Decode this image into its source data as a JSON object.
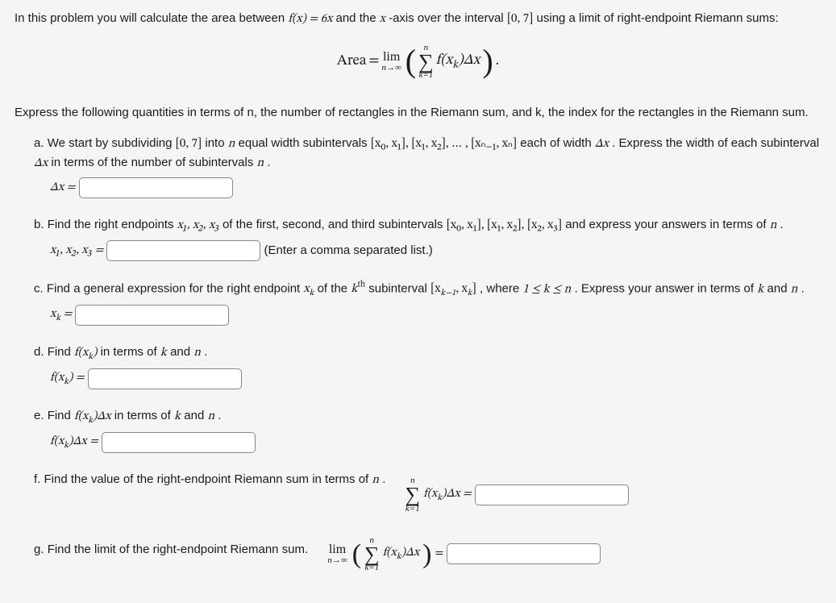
{
  "intro_pre": "In this problem you will calculate the area between ",
  "intro_fx": "f(x) = 6x",
  "intro_mid": " and the ",
  "intro_xaxis": "x",
  "intro_post_axis": "-axis over the interval ",
  "intro_interval": "[0, 7]",
  "intro_end": " using a limit of right-endpoint Riemann sums:",
  "area_formula": {
    "lhs": "Area",
    "eq": " = ",
    "lim": "lim",
    "lim_sub": "n→∞",
    "sum_top": "n",
    "sum_bot": "k=1",
    "summand": "f(x",
    "summand_sub": "k",
    "summand_tail": ")Δx",
    "period": "."
  },
  "sub_intro": "Express the following quantities in terms of n, the number of rectangles in the Riemann sum, and k, the index for the rectangles in the Riemann sum.",
  "parts": {
    "a": {
      "label": "a.",
      "text_1": " We start by subdividing ",
      "interval": "[0, 7]",
      "text_2": " into ",
      "n": "n",
      "text_3": " equal width subintervals ",
      "subs": "[x₀, x₁], [x₁, x₂], … , [xₙ₋₁, xₙ]",
      "text_4": " each of width ",
      "dx": "Δx",
      "text_5": ". Express the width of each subinterval ",
      "dx2": "Δx",
      "text_6": " in terms of the number of subintervals ",
      "n2": "n",
      "text_7": ".",
      "eq_lhs": "Δx ="
    },
    "b": {
      "label": "b.",
      "text_1": " Find the right endpoints ",
      "pts": "x₁, x₂, x₃",
      "text_2": " of the first, second, and third subintervals ",
      "ints": "[x₀, x₁], [x₁, x₂], [x₂, x₃]",
      "text_3": " and express your answers in terms of ",
      "n": "n",
      "text_4": ".",
      "eq_lhs": "x₁, x₂, x₃ =",
      "hint": " (Enter a comma separated list.)"
    },
    "c": {
      "label": "c.",
      "text_1": " Find a general expression for the right endpoint ",
      "xk": "x",
      "xk_sub": "k",
      "text_2": " of the ",
      "kth_k": "k",
      "kth_sup": "th",
      "text_3": " subinterval ",
      "int": "[x",
      "int_sub1": "k−1",
      "int_mid": ", x",
      "int_sub2": "k",
      "int_close": "]",
      "text_4": ", where ",
      "cond": "1 ≤ k ≤ n",
      "text_5": ". Express your answer in terms of ",
      "k": "k",
      "and": " and ",
      "n": "n",
      "text_6": ".",
      "eq_lhs_x": "x",
      "eq_lhs_sub": "k",
      "eq_lhs_eq": " ="
    },
    "d": {
      "label": "d.",
      "text_1": " Find ",
      "fxk": "f(x",
      "fxk_sub": "k",
      "fxk_close": ")",
      "text_2": " in terms of ",
      "k": "k",
      "and": " and ",
      "n": "n",
      "text_3": ".",
      "eq_lhs": "f(x",
      "eq_sub": "k",
      "eq_close": ") ="
    },
    "e": {
      "label": "e.",
      "text_1": " Find ",
      "fxk": "f(x",
      "fxk_sub": "k",
      "fxk_close": ")Δx",
      "text_2": " in terms of ",
      "k": "k",
      "and": " and ",
      "n": "n",
      "text_3": ".",
      "eq_lhs": "f(x",
      "eq_sub": "k",
      "eq_close": ")Δx ="
    },
    "f": {
      "label": "f.",
      "text_1": " Find the value of the right-endpoint Riemann sum in terms of ",
      "n": "n",
      "text_2": ".",
      "sum_top": "n",
      "sum_bot": "k=1",
      "summand": "f(x",
      "sum_sub": "k",
      "sum_tail": ")Δx =",
      "eq": ""
    },
    "g": {
      "label": "g.",
      "text_1": " Find the limit of the right-endpoint Riemann sum.",
      "lim": "lim",
      "lim_sub": "n→∞",
      "sum_top": "n",
      "sum_bot": "k=1",
      "summand": "f(x",
      "sum_sub": "k",
      "sum_tail": ")Δx",
      "eq": " ="
    }
  },
  "colors": {
    "bg": "#f5f5f3",
    "text": "#1a1a1a",
    "box_border": "#888888"
  }
}
